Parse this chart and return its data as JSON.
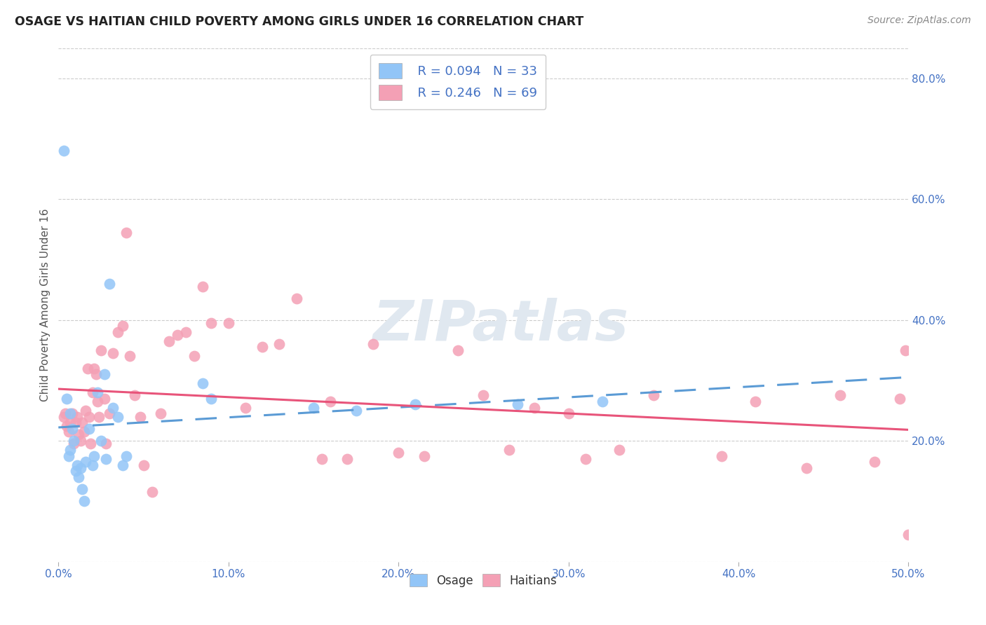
{
  "title": "OSAGE VS HAITIAN CHILD POVERTY AMONG GIRLS UNDER 16 CORRELATION CHART",
  "source": "Source: ZipAtlas.com",
  "ylabel": "Child Poverty Among Girls Under 16",
  "xlim": [
    0.0,
    0.5
  ],
  "ylim": [
    0.0,
    0.85
  ],
  "yticks": [
    0.2,
    0.4,
    0.6,
    0.8
  ],
  "xticks": [
    0.0,
    0.1,
    0.2,
    0.3,
    0.4,
    0.5
  ],
  "osage_R": 0.094,
  "osage_N": 33,
  "haitian_R": 0.246,
  "haitian_N": 69,
  "osage_color": "#92C5F7",
  "haitian_color": "#F4A0B5",
  "trendline_osage_color": "#5B9BD5",
  "trendline_haitian_color": "#E8547A",
  "watermark": "ZIPatlas",
  "osage_x": [
    0.003,
    0.005,
    0.006,
    0.007,
    0.007,
    0.008,
    0.009,
    0.01,
    0.011,
    0.012,
    0.013,
    0.014,
    0.015,
    0.016,
    0.018,
    0.02,
    0.021,
    0.023,
    0.025,
    0.027,
    0.028,
    0.03,
    0.032,
    0.035,
    0.038,
    0.04,
    0.085,
    0.09,
    0.15,
    0.175,
    0.21,
    0.27,
    0.32
  ],
  "osage_y": [
    0.68,
    0.27,
    0.175,
    0.245,
    0.185,
    0.22,
    0.2,
    0.15,
    0.16,
    0.14,
    0.155,
    0.12,
    0.1,
    0.165,
    0.22,
    0.16,
    0.175,
    0.28,
    0.2,
    0.31,
    0.17,
    0.46,
    0.255,
    0.24,
    0.16,
    0.175,
    0.295,
    0.27,
    0.255,
    0.25,
    0.26,
    0.26,
    0.265
  ],
  "haitian_x": [
    0.003,
    0.004,
    0.005,
    0.006,
    0.007,
    0.008,
    0.009,
    0.01,
    0.011,
    0.012,
    0.013,
    0.014,
    0.015,
    0.016,
    0.017,
    0.018,
    0.019,
    0.02,
    0.021,
    0.022,
    0.023,
    0.024,
    0.025,
    0.027,
    0.028,
    0.03,
    0.032,
    0.035,
    0.038,
    0.04,
    0.042,
    0.045,
    0.048,
    0.05,
    0.055,
    0.06,
    0.065,
    0.07,
    0.075,
    0.08,
    0.085,
    0.09,
    0.1,
    0.11,
    0.12,
    0.13,
    0.14,
    0.155,
    0.16,
    0.17,
    0.185,
    0.2,
    0.215,
    0.235,
    0.25,
    0.265,
    0.28,
    0.3,
    0.31,
    0.33,
    0.35,
    0.39,
    0.41,
    0.44,
    0.46,
    0.48,
    0.495,
    0.498,
    0.5
  ],
  "haitian_y": [
    0.24,
    0.245,
    0.225,
    0.215,
    0.23,
    0.245,
    0.195,
    0.23,
    0.24,
    0.21,
    0.2,
    0.23,
    0.215,
    0.25,
    0.32,
    0.24,
    0.195,
    0.28,
    0.32,
    0.31,
    0.265,
    0.24,
    0.35,
    0.27,
    0.195,
    0.245,
    0.345,
    0.38,
    0.39,
    0.545,
    0.34,
    0.275,
    0.24,
    0.16,
    0.115,
    0.245,
    0.365,
    0.375,
    0.38,
    0.34,
    0.455,
    0.395,
    0.395,
    0.255,
    0.355,
    0.36,
    0.435,
    0.17,
    0.265,
    0.17,
    0.36,
    0.18,
    0.175,
    0.35,
    0.275,
    0.185,
    0.255,
    0.245,
    0.17,
    0.185,
    0.275,
    0.175,
    0.265,
    0.155,
    0.275,
    0.165,
    0.27,
    0.35,
    0.045
  ]
}
